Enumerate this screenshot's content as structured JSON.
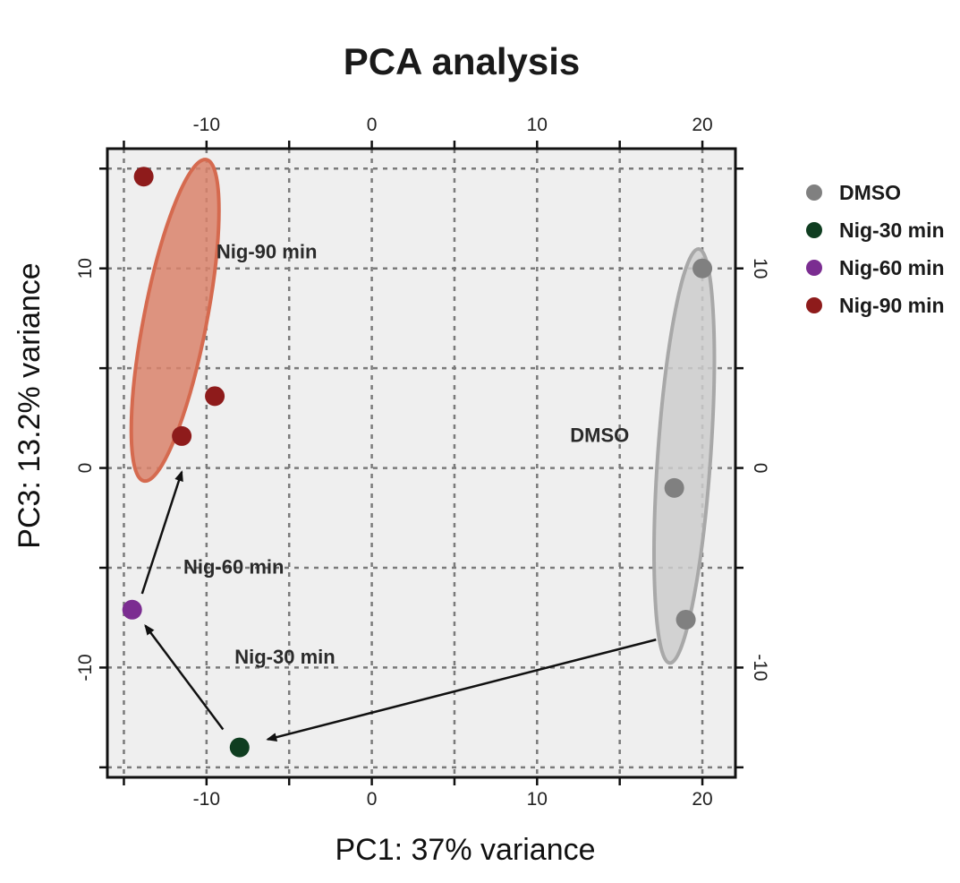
{
  "chart_data": {
    "type": "scatter",
    "title": "PCA analysis",
    "xlabel": "PC1: 37% variance",
    "ylabel": "PC3: 13.2% variance",
    "xlim": [
      -16,
      22
    ],
    "ylim": [
      -15.5,
      16
    ],
    "xticks": [
      -10,
      0,
      10,
      20
    ],
    "yticks": [
      -10,
      0,
      10
    ],
    "x_gridlines": [
      -15,
      -10,
      -5,
      0,
      5,
      10,
      15,
      20
    ],
    "y_gridlines": [
      -15,
      -10,
      -5,
      0,
      5,
      10,
      15
    ],
    "grid": true,
    "legend_position": "right",
    "series": [
      {
        "name": "DMSO",
        "color": "#808080",
        "points": [
          [
            20.0,
            10.0
          ],
          [
            18.3,
            -1.0
          ],
          [
            19.0,
            -7.6
          ]
        ]
      },
      {
        "name": "Nig-30 min",
        "color": "#0f3d20",
        "points": [
          [
            -8.0,
            -14.0
          ]
        ]
      },
      {
        "name": "Nig-60 min",
        "color": "#7b2d91",
        "points": [
          [
            -14.5,
            -7.1
          ]
        ]
      },
      {
        "name": "Nig-90 min",
        "color": "#8e1b1b",
        "points": [
          [
            -13.8,
            14.6
          ],
          [
            -11.5,
            1.6
          ],
          [
            -9.5,
            3.6
          ]
        ]
      }
    ],
    "ellipses": [
      {
        "group": "Nig-90 min",
        "cx": -11.9,
        "cy": 7.4,
        "rx": 1.9,
        "ry": 8.2,
        "angle_deg": 11,
        "fill": "#d9826b",
        "stroke": "#d56a4f"
      },
      {
        "group": "DMSO",
        "cx": 18.9,
        "cy": 0.6,
        "rx": 1.6,
        "ry": 10.4,
        "angle_deg": 4,
        "fill": "#cccccc",
        "stroke": "#a8a8a8"
      }
    ],
    "annotations": [
      {
        "text": "Nig-90 min",
        "x": -9.4,
        "y": 10.5
      },
      {
        "text": "Nig-60 min",
        "x": -11.4,
        "y": -5.3
      },
      {
        "text": "Nig-30 min",
        "x": -8.3,
        "y": -9.8
      },
      {
        "text": "DMSO",
        "x": 12.0,
        "y": 1.3
      }
    ],
    "arrows": [
      {
        "from": [
          17.2,
          -8.6
        ],
        "to": [
          -6.3,
          -13.6
        ]
      },
      {
        "from": [
          -9.0,
          -13.1
        ],
        "to": [
          -13.7,
          -7.9
        ]
      },
      {
        "from": [
          -13.9,
          -6.3
        ],
        "to": [
          -11.5,
          -0.2
        ]
      }
    ]
  }
}
